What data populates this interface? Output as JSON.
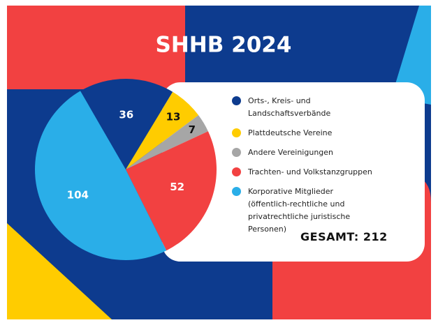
{
  "chart_data": {
    "type": "pie",
    "title": "SHHB 2024",
    "categories": [
      "Orts-, Kreis- und Landschaftsverbände",
      "Plattdeutsche Vereine",
      "Andere Vereinigungen",
      "Trachten- und Volkstanzgruppen",
      "Korporative Mitglieder (öffentlich-rechtliche und privatrechtliche juristische Personen)"
    ],
    "values": [
      36,
      13,
      7,
      52,
      104
    ],
    "colors": [
      "#0d3b8e",
      "#ffcc00",
      "#a6a6a6",
      "#f24141",
      "#2aaee8"
    ],
    "legend": "right",
    "total_label": "GESAMT: 212"
  }
}
